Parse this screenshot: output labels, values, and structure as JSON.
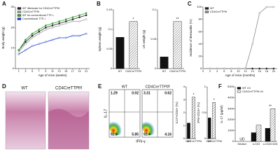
{
  "panel_labels": [
    "A",
    "B",
    "C",
    "D",
    "E",
    "F"
  ],
  "histology": {
    "labels": [
      "WT",
      "CD4CreTTPf/f"
    ]
  },
  "flow": {
    "x_label": "IFN-γ",
    "y_label": "IL-17",
    "plots": [
      {
        "label": "WT",
        "quadrants": [
          1.29,
          0.02,
          92.8,
          5.85
        ]
      },
      {
        "label": "CD4CreTTPf/f",
        "quadrants": [
          3.31,
          0.62,
          92.4,
          4.16
        ]
      }
    ]
  },
  "chart_data": [
    {
      "type": "line",
      "xlabel": "Age of mice (weeks)",
      "ylabel": "Body weight (g)",
      "x": [
        1,
        3,
        5,
        7,
        9,
        11,
        13,
        15,
        17,
        19,
        21
      ],
      "xlim": [
        0,
        22
      ],
      "xticks": [
        1,
        3,
        5,
        7,
        9,
        11,
        13,
        15,
        17,
        19,
        21
      ],
      "ylim": [
        0,
        30
      ],
      "yticks": [
        0,
        10,
        20,
        30
      ],
      "legend": "upper left",
      "series": [
        {
          "name": "WT littermate for CD4CreTTPf/f",
          "color": "#222222",
          "values": [
            9,
            13,
            16,
            18,
            20,
            21,
            22,
            23,
            24,
            25,
            26
          ]
        },
        {
          "name": "CD4CreTTPf/f",
          "color": "#999999",
          "values": [
            8,
            12,
            15,
            17,
            19,
            20,
            21,
            22,
            23,
            23,
            24
          ]
        },
        {
          "name": "WT for conventional TTP-/-",
          "color": "#2ca02c",
          "values": [
            9,
            14,
            17,
            19,
            21,
            22,
            23,
            24,
            25,
            26,
            27
          ]
        },
        {
          "name": "Conventional TTP-/-",
          "color": "#1f3fd0",
          "values": [
            7,
            9,
            11,
            12,
            13,
            14,
            15,
            15,
            16,
            16,
            17
          ]
        }
      ]
    },
    {
      "type": "bar",
      "ylabel": "Spleen weight (g)",
      "categories": [
        "WT",
        "CD4CreTTPf/f"
      ],
      "values": [
        0.08,
        0.12
      ],
      "colors": [
        "#111111",
        "#ffffff"
      ],
      "patterns": [
        "solid",
        "hatched"
      ],
      "ylim": [
        0,
        0.15
      ],
      "yticks": [
        0,
        0.05,
        0.1,
        0.15
      ],
      "annotations": [
        {
          "text": "*",
          "category": "CD4CreTTPf/f"
        }
      ]
    },
    {
      "type": "bar",
      "ylabel": "LN weight (g)",
      "categories": [
        "WT",
        "CD4CreTTPf/f"
      ],
      "values": [
        0.02,
        0.08
      ],
      "colors": [
        "#111111",
        "#ffffff"
      ],
      "patterns": [
        "solid",
        "hatched"
      ],
      "ylim": [
        0,
        0.1
      ],
      "yticks": [
        0,
        0.05,
        0.1
      ],
      "annotations": [
        {
          "text": "**",
          "category": "CD4CreTTPf/f"
        }
      ]
    },
    {
      "type": "line",
      "xlabel": "Age of mice (months)",
      "ylabel": "Incidence of dermatitis (%)",
      "x": [
        0,
        2,
        4,
        6,
        8,
        10,
        12,
        14,
        16,
        18,
        20
      ],
      "xlim": [
        0,
        21
      ],
      "xticks": [
        0,
        2,
        4,
        6,
        8,
        10,
        12,
        14,
        16,
        18,
        20
      ],
      "ylim": [
        0,
        100
      ],
      "yticks": [
        0,
        20,
        40,
        60,
        80,
        100
      ],
      "legend": "upper left",
      "series": [
        {
          "name": "WT",
          "color": "#222222",
          "values": [
            0,
            0,
            0,
            0,
            0,
            0,
            0,
            0,
            0,
            0,
            0
          ]
        },
        {
          "name": "CD4CreTTPf/f",
          "color": "#888888",
          "values": [
            0,
            0,
            0,
            0,
            0,
            0,
            0,
            40,
            90,
            100,
            100
          ]
        }
      ]
    },
    {
      "type": "bar",
      "ylabel": "IL17+CD4+ (%)",
      "categories": [
        "WT",
        "CD4CreTTPf/f"
      ],
      "values": [
        1.2,
        3.2
      ],
      "colors": [
        "#111111",
        "#ffffff"
      ],
      "patterns": [
        "solid",
        "hatched"
      ],
      "ylim": [
        0,
        4
      ],
      "yticks": [
        0,
        1,
        2,
        3,
        4
      ],
      "annotations": [
        {
          "text": "*",
          "category": "CD4CreTTPf/f"
        }
      ]
    },
    {
      "type": "bar",
      "ylabel": "IFN+CD4+ (%)",
      "categories": [
        "WT",
        "CD4CreTTPf/f"
      ],
      "values": [
        0.4,
        0.7
      ],
      "colors": [
        "#111111",
        "#ffffff"
      ],
      "patterns": [
        "solid",
        "hatched"
      ],
      "ylim": [
        0,
        1
      ],
      "yticks": [
        0,
        0.5,
        1
      ],
      "annotations": [
        {
          "text": "*",
          "category": "CD4CreTTPf/f"
        }
      ]
    },
    {
      "type": "bar",
      "ylabel": "IL-17 (pg/ml)",
      "categories": [
        "Medium",
        "α-CD3",
        "α-CD3/CD28"
      ],
      "ylim": [
        0,
        5000
      ],
      "yticks": [
        0,
        1000,
        2000,
        3000,
        4000,
        5000
      ],
      "legend": "upper left",
      "series": [
        {
          "name": "WT LN",
          "color": "#111111",
          "pattern": "solid",
          "values": [
            null,
            800,
            1200
          ]
        },
        {
          "name": "CD4CreTTPf/f LN",
          "color": "#ffffff",
          "pattern": "hatched",
          "values": [
            null,
            1500,
            3000
          ]
        }
      ],
      "annotations": [
        {
          "text": "UD",
          "category": "Medium"
        },
        {
          "text": "**",
          "category": "α-CD3/CD28"
        }
      ]
    }
  ]
}
